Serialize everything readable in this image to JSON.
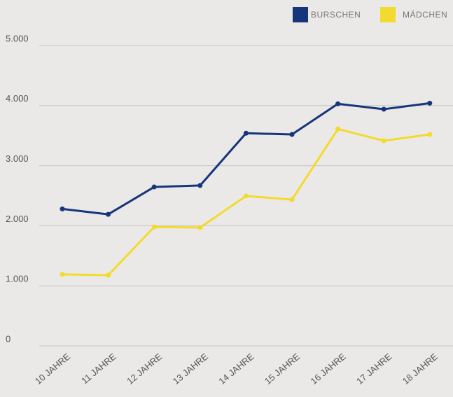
{
  "chart_data": {
    "type": "line",
    "categories": [
      "10 JAHRE",
      "11 JAHRE",
      "12 JAHRE",
      "13 JAHRE",
      "14 JAHRE",
      "15 JAHRE",
      "16 JAHRE",
      "17 JAHRE",
      "18 JAHRE"
    ],
    "series": [
      {
        "name": "BURSCHEN",
        "color": "#16357a",
        "values": [
          2280,
          2190,
          2645,
          2670,
          3540,
          3520,
          4030,
          3940,
          4040
        ]
      },
      {
        "name": "MÄDCHEN",
        "color": "#f2db2e",
        "values": [
          1190,
          1177,
          1980,
          1970,
          2495,
          2435,
          3610,
          3415,
          3520
        ]
      }
    ],
    "ylim": [
      0,
      5000
    ],
    "yticks": [
      0,
      {
        "value": 1000,
        "label": "1.000"
      },
      {
        "value": 2000,
        "label": "2.000"
      },
      {
        "value": 3000,
        "label": "3.000"
      },
      {
        "value": 4000,
        "label": "4.000"
      },
      {
        "value": 5000,
        "label": "5.000"
      }
    ],
    "grid": true,
    "legend": "top-right"
  }
}
